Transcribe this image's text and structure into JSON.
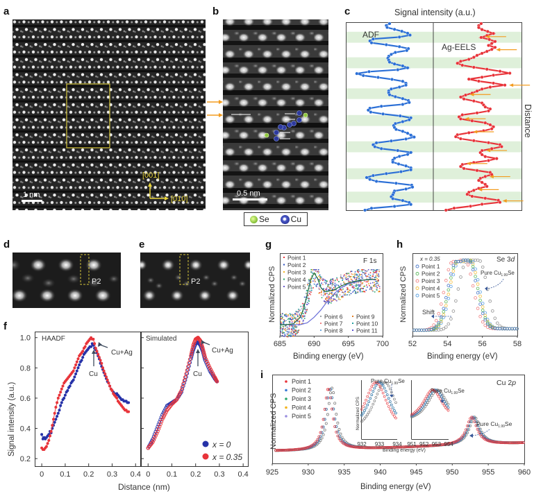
{
  "panels": {
    "a": {
      "label": "a",
      "scale_bar": "1 nm",
      "dir_up": "[001]",
      "dir_right": "[010]"
    },
    "b": {
      "label": "b",
      "scale_bar": "0.5 nm",
      "legend": [
        {
          "name": "Se",
          "color": "#8dc63f"
        },
        {
          "name": "Cu",
          "color": "#2e3a9e"
        }
      ]
    },
    "c": {
      "label": "c",
      "title": "Signal intensity (a.u.)",
      "ylabel": "Distance",
      "left_label": "ADF",
      "right_label": "Ag-EELS"
    },
    "d": {
      "label": "d",
      "marker": "P2"
    },
    "e": {
      "label": "e",
      "marker": "P2"
    },
    "f": {
      "label": "f"
    },
    "g": {
      "label": "g"
    },
    "h": {
      "label": "h"
    },
    "i": {
      "label": "i"
    }
  },
  "colors": {
    "blue": "#2b6fd6",
    "red": "#e8343a",
    "orange": "#f39c1f",
    "green_band": "#dff0da",
    "yellow_box": "#d4c43a",
    "dark_blue": "#2632a8"
  },
  "chart_data": [
    {
      "id": "c",
      "type": "line",
      "title": "Signal intensity (a.u.)",
      "ylabel": "Distance",
      "series": [
        {
          "name": "ADF",
          "color": "#2b6fd6",
          "values": [
            0.5,
            0.46,
            0.47,
            0.56,
            0.65,
            0.72,
            0.75,
            0.62,
            0.3,
            0.26,
            0.28,
            0.46,
            0.62,
            0.73,
            0.71,
            0.57,
            0.52,
            0.49,
            0.48,
            0.49,
            0.5,
            0.56,
            0.66,
            0.72,
            0.6,
            0.25,
            0.1,
            0.18,
            0.36,
            0.53,
            0.66,
            0.7,
            0.7,
            0.62,
            0.52,
            0.49,
            0.49,
            0.5,
            0.57,
            0.66,
            0.73,
            0.74,
            0.66,
            0.4,
            0.26,
            0.24,
            0.27,
            0.42,
            0.63,
            0.76,
            0.74,
            0.66,
            0.57,
            0.55,
            0.56,
            0.58,
            0.66,
            0.72,
            0.76,
            0.8,
            0.7,
            0.52,
            0.34,
            0.3,
            0.32,
            0.4,
            0.6,
            0.76,
            0.72,
            0.62,
            0.56,
            0.54,
            0.54,
            0.61,
            0.7,
            0.76,
            0.76,
            0.64,
            0.46,
            0.3,
            0.22,
            0.26,
            0.34,
            0.58,
            0.77,
            0.78,
            0.7,
            0.56,
            0.55,
            0.54,
            0.52,
            0.54,
            0.66,
            0.74,
            0.76,
            0.56,
            0.28,
            0.2
          ]
        },
        {
          "name": "Ag-EELS",
          "color": "#e8343a",
          "values": [
            0.55,
            0.52,
            0.52,
            0.56,
            0.63,
            0.7,
            0.62,
            0.55,
            0.65,
            0.72,
            0.68,
            0.64,
            0.72,
            0.68,
            0.62,
            0.56,
            0.5,
            0.46,
            0.4,
            0.3,
            0.26,
            0.32,
            0.46,
            0.62,
            0.78,
            0.9,
            0.7,
            0.56,
            0.4,
            0.52,
            0.7,
            0.84,
            0.66,
            0.56,
            0.5,
            0.44,
            0.36,
            0.3,
            0.34,
            0.46,
            0.56,
            0.58,
            0.6,
            0.66,
            0.64,
            0.5,
            0.32,
            0.28,
            0.3,
            0.44,
            0.6,
            0.66,
            0.7,
            0.68,
            0.58,
            0.4,
            0.26,
            0.24,
            0.3,
            0.46,
            0.64,
            0.78,
            0.8,
            0.68,
            0.56,
            0.54,
            0.56,
            0.6,
            0.74,
            0.64,
            0.46,
            0.32,
            0.3,
            0.34,
            0.5,
            0.66,
            0.68,
            0.6,
            0.54,
            0.52,
            0.56,
            0.6,
            0.62,
            0.52,
            0.46,
            0.4,
            0.38,
            0.44,
            0.6,
            0.76,
            0.78,
            0.56,
            0.42,
            0.22,
            0.12
          ]
        }
      ],
      "arrows_right_series_at": [
        0.07,
        0.14,
        0.33,
        0.38,
        0.51,
        0.58,
        0.68,
        0.75,
        0.82,
        0.89,
        0.95
      ]
    },
    {
      "id": "f-haadf",
      "type": "line",
      "title": "HAADF",
      "xlabel": "Distance (nm)",
      "ylabel": "Signal intensity (a.u.)",
      "xlim": [
        -0.03,
        0.42
      ],
      "ylim": [
        0.15,
        1.04
      ],
      "xticks": [
        "0",
        "0.1",
        "0.2",
        "0.3",
        "0.4"
      ],
      "yticks": [
        "0.2",
        "0.4",
        "0.6",
        "0.8",
        "1.0"
      ],
      "annotations": [
        "Cu+Ag",
        "Cu"
      ],
      "series": [
        {
          "name": "x = 0",
          "color": "#2632a8",
          "x": [
            0,
            0.005,
            0.01,
            0.015,
            0.02,
            0.025,
            0.03,
            0.035,
            0.04,
            0.045,
            0.05,
            0.055,
            0.06,
            0.065,
            0.07,
            0.075,
            0.08,
            0.085,
            0.09,
            0.095,
            0.1,
            0.105,
            0.11,
            0.115,
            0.12,
            0.125,
            0.13,
            0.135,
            0.14,
            0.145,
            0.15,
            0.155,
            0.16,
            0.165,
            0.17,
            0.175,
            0.18,
            0.185,
            0.19,
            0.195,
            0.2,
            0.205,
            0.21,
            0.215,
            0.22,
            0.225,
            0.23,
            0.235,
            0.24,
            0.245,
            0.25,
            0.255,
            0.26,
            0.265,
            0.27,
            0.275,
            0.28,
            0.285,
            0.29,
            0.295,
            0.3,
            0.305,
            0.31,
            0.315,
            0.32,
            0.325,
            0.33,
            0.335,
            0.34,
            0.345,
            0.35,
            0.355,
            0.36,
            0.365,
            0.37
          ],
          "y": [
            0.36,
            0.33,
            0.34,
            0.33,
            0.34,
            0.35,
            0.36,
            0.38,
            0.37,
            0.4,
            0.42,
            0.44,
            0.46,
            0.48,
            0.5,
            0.52,
            0.55,
            0.57,
            0.59,
            0.6,
            0.62,
            0.64,
            0.65,
            0.67,
            0.68,
            0.7,
            0.71,
            0.72,
            0.74,
            0.76,
            0.78,
            0.8,
            0.82,
            0.84,
            0.85,
            0.87,
            0.89,
            0.9,
            0.91,
            0.92,
            0.93,
            0.94,
            0.94,
            0.96,
            0.95,
            0.93,
            0.92,
            0.9,
            0.88,
            0.86,
            0.83,
            0.81,
            0.79,
            0.77,
            0.75,
            0.73,
            0.71,
            0.7,
            0.68,
            0.66,
            0.65,
            0.64,
            0.63,
            0.62,
            0.63,
            0.62,
            0.61,
            0.6,
            0.59,
            0.59,
            0.58,
            0.58,
            0.58,
            0.57,
            0.57
          ]
        },
        {
          "name": "x = 0.35",
          "color": "#e8343a",
          "x": [
            0,
            0.005,
            0.01,
            0.015,
            0.02,
            0.025,
            0.03,
            0.035,
            0.04,
            0.045,
            0.05,
            0.055,
            0.06,
            0.065,
            0.07,
            0.075,
            0.08,
            0.085,
            0.09,
            0.095,
            0.1,
            0.105,
            0.11,
            0.115,
            0.12,
            0.125,
            0.13,
            0.135,
            0.14,
            0.145,
            0.15,
            0.155,
            0.16,
            0.165,
            0.17,
            0.175,
            0.18,
            0.185,
            0.19,
            0.195,
            0.2,
            0.205,
            0.21,
            0.215,
            0.22,
            0.225,
            0.23,
            0.235,
            0.24,
            0.245,
            0.25,
            0.255,
            0.26,
            0.265,
            0.27,
            0.275,
            0.28,
            0.285,
            0.29,
            0.295,
            0.3,
            0.305,
            0.31,
            0.315,
            0.32,
            0.325,
            0.33,
            0.335,
            0.34,
            0.345,
            0.35,
            0.355,
            0.36,
            0.365,
            0.37
          ],
          "y": [
            0.27,
            0.26,
            0.26,
            0.27,
            0.28,
            0.3,
            0.32,
            0.35,
            0.38,
            0.42,
            0.46,
            0.5,
            0.54,
            0.57,
            0.6,
            0.62,
            0.64,
            0.66,
            0.68,
            0.7,
            0.71,
            0.72,
            0.73,
            0.74,
            0.75,
            0.76,
            0.77,
            0.78,
            0.8,
            0.82,
            0.84,
            0.86,
            0.88,
            0.89,
            0.9,
            0.91,
            0.93,
            0.94,
            0.96,
            0.97,
            0.98,
            0.99,
            1.0,
            0.99,
            0.99,
            0.96,
            0.93,
            0.91,
            0.89,
            0.87,
            0.85,
            0.83,
            0.8,
            0.78,
            0.76,
            0.74,
            0.72,
            0.7,
            0.68,
            0.66,
            0.65,
            0.63,
            0.62,
            0.61,
            0.6,
            0.58,
            0.57,
            0.56,
            0.55,
            0.54,
            0.53,
            0.52,
            0.52,
            0.51,
            0.51
          ]
        }
      ]
    },
    {
      "id": "f-simulated",
      "type": "line",
      "title": "Simulated",
      "xlabel": "Distance (nm)",
      "xlim": [
        -0.03,
        0.42
      ],
      "ylim": [
        0.15,
        1.04
      ],
      "xticks": [
        "0",
        "0.1",
        "0.2",
        "0.3",
        "0.4"
      ],
      "annotations": [
        "Cu+Ag",
        "Cu"
      ],
      "legend": [
        "x = 0",
        "x = 0.35"
      ],
      "series": [
        {
          "name": "x = 0",
          "color": "#2632a8",
          "x": [
            0,
            0.02,
            0.04,
            0.06,
            0.08,
            0.1,
            0.12,
            0.14,
            0.16,
            0.18,
            0.19,
            0.2,
            0.21,
            0.22,
            0.23,
            0.24,
            0.26,
            0.28,
            0.29
          ],
          "y": [
            0.27,
            0.33,
            0.41,
            0.49,
            0.55,
            0.57,
            0.59,
            0.64,
            0.74,
            0.86,
            0.92,
            0.96,
            0.97,
            0.95,
            0.91,
            0.85,
            0.78,
            0.73,
            0.71
          ]
        },
        {
          "name": "x = 0.35",
          "color": "#e8343a",
          "x": [
            0,
            0.02,
            0.04,
            0.06,
            0.08,
            0.1,
            0.12,
            0.14,
            0.16,
            0.18,
            0.19,
            0.2,
            0.21,
            0.22,
            0.23,
            0.24,
            0.26,
            0.28,
            0.29
          ],
          "y": [
            0.27,
            0.31,
            0.38,
            0.46,
            0.52,
            0.56,
            0.59,
            0.65,
            0.76,
            0.88,
            0.95,
            0.99,
            1.0,
            0.98,
            0.93,
            0.87,
            0.8,
            0.74,
            0.71
          ]
        }
      ]
    },
    {
      "id": "g",
      "type": "scatter",
      "title": "F 1s",
      "xlabel": "Binding energy (eV)",
      "ylabel": "Normalized CPS",
      "xlim": [
        685,
        700
      ],
      "xticks": [
        "685",
        "690",
        "695",
        "700"
      ],
      "legend": [
        "Point 1",
        "Point 2",
        "Point 3",
        "Point 4",
        "Point 5",
        "Point 6",
        "Point 7",
        "Point 8",
        "Point 9",
        "Point 10",
        "Point 11"
      ],
      "legend_colors": [
        "#e8343a",
        "#2b4fbf",
        "#f3b41f",
        "#2aa86a",
        "#6a5acd",
        "#9aa0a6",
        "#f08080",
        "#6fa8dc",
        "#e07b1f",
        "#20a0a0",
        "#5a4fcf"
      ],
      "fit_curve": {
        "x": [
          685,
          686,
          687,
          688,
          688.5,
          689,
          689.5,
          690,
          690.5,
          691,
          691.5,
          692,
          693,
          694,
          695,
          696,
          697,
          698,
          699
        ],
        "y": [
          0.12,
          0.12,
          0.13,
          0.2,
          0.3,
          0.45,
          0.6,
          0.68,
          0.62,
          0.52,
          0.48,
          0.48,
          0.5,
          0.54,
          0.57,
          0.59,
          0.6,
          0.61,
          0.61
        ]
      },
      "background_curve": {
        "x": [
          685,
          687,
          688,
          689,
          690,
          691,
          692,
          693,
          694,
          695,
          697,
          699
        ],
        "y": [
          0.12,
          0.12,
          0.12,
          0.14,
          0.2,
          0.28,
          0.38,
          0.46,
          0.52,
          0.56,
          0.6,
          0.61
        ]
      }
    },
    {
      "id": "h",
      "type": "scatter",
      "title": "Se 3d",
      "subtitle": "x = 0.35",
      "xlabel": "Binding energy (eV)",
      "ylabel": "Normalized CPS",
      "xlim": [
        52,
        58
      ],
      "xticks": [
        "52",
        "54",
        "56",
        "58"
      ],
      "annotations": [
        "Pure Cu1.99Se",
        "Shift"
      ],
      "series": [
        {
          "name": "Point 1",
          "color": "#4a78c8",
          "center": 54.85
        },
        {
          "name": "Point 2",
          "color": "#5cb85c",
          "center": 54.9
        },
        {
          "name": "Point 3",
          "color": "#f08080",
          "center": 54.65
        },
        {
          "name": "Point 4",
          "color": "#f3c040",
          "center": 54.95
        },
        {
          "name": "Point 5",
          "color": "#5aa0e0",
          "center": 55.0
        },
        {
          "name": "Pure Cu1.99Se",
          "color": "#909090",
          "center": 55.45
        }
      ]
    },
    {
      "id": "i",
      "type": "scatter",
      "title": "Cu 2p",
      "xlabel": "Binding energy (eV)",
      "ylabel": "Normalized CPS",
      "xlim": [
        925,
        960
      ],
      "xticks": [
        "925",
        "930",
        "935",
        "940",
        "945",
        "950",
        "955",
        "960"
      ],
      "annotations": [
        "Pure Cu1.99Se"
      ],
      "series": [
        {
          "name": "Point 1",
          "color": "#e8343a",
          "peak1": 932.8,
          "peak2": 952.7
        },
        {
          "name": "Point 2",
          "color": "#3a7bd5",
          "peak1": 933.0,
          "peak2": 952.9
        },
        {
          "name": "Point 3",
          "color": "#2aa86a",
          "peak1": 933.0,
          "peak2": 952.9
        },
        {
          "name": "Point 4",
          "color": "#f3b41f",
          "peak1": 933.0,
          "peak2": 952.9
        },
        {
          "name": "Point 5",
          "color": "#9a8fe0",
          "peak1": 933.0,
          "peak2": 952.9
        },
        {
          "name": "Pure Cu1.99Se",
          "color": "#707070",
          "peak1": 933.3,
          "peak2": 953.1
        }
      ],
      "insets": [
        {
          "xlim": [
            932,
            934
          ],
          "xticks": [
            "932",
            "933",
            "934"
          ],
          "ylabel": "Normalized CPS",
          "annotation": "Pure Cu1.99Se"
        },
        {
          "xlim": [
            951,
            954
          ],
          "xticks": [
            "951",
            "952",
            "953",
            "954"
          ],
          "annotation": "Pure Cu1.99Se"
        }
      ],
      "inset_xlabel": "Binding energy (eV)"
    }
  ],
  "text": {
    "f_ylabel": "Signal intensity (a.u.)",
    "f_xlabel": "Distance (nm)",
    "f_ann_cuag": "Cu+Ag",
    "f_ann_cu": "Cu",
    "f_left_title": "HAADF",
    "f_right_title": "Simulated",
    "f_legend_0": "x = 0",
    "f_legend_1": "x = 0.35",
    "g_title": "F 1s",
    "h_title": "Se 3",
    "h_title_it": "d",
    "h_sub": "x = 0.35",
    "h_shift": "Shift",
    "pure_a": "Pure Cu",
    "pure_sub": "1.99",
    "pure_b": "Se",
    "i_title": "Cu 2",
    "i_title_it": "p",
    "xps_ylabel": "Normalized CPS",
    "xps_xlabel": "Binding energy (eV)",
    "inset_xlabel": "Binding energy (eV)"
  }
}
